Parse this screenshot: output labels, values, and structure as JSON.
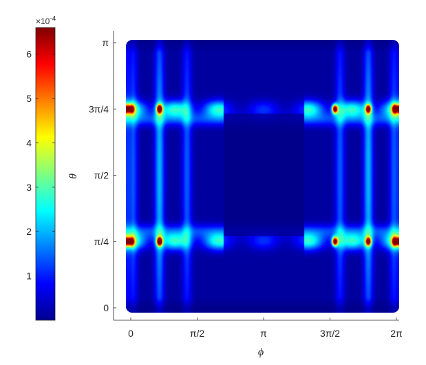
{
  "chart_data": {
    "type": "heatmap",
    "title": "",
    "xlabel": "ϕ",
    "ylabel": "θ",
    "xlim": [
      0,
      6.2832
    ],
    "ylim": [
      0,
      3.1416
    ],
    "x_ticks": [
      {
        "value": 0,
        "label": "0"
      },
      {
        "value": 1.5708,
        "label": "π/2"
      },
      {
        "value": 3.1416,
        "label": "π"
      },
      {
        "value": 4.7124,
        "label": "3π/2"
      },
      {
        "value": 6.2832,
        "label": "2π"
      }
    ],
    "y_ticks": [
      {
        "value": 0,
        "label": "0"
      },
      {
        "value": 0.7854,
        "label": "π/4"
      },
      {
        "value": 1.5708,
        "label": "π/2"
      },
      {
        "value": 2.3562,
        "label": "3π/4"
      },
      {
        "value": 3.1416,
        "label": "π"
      }
    ],
    "colormap": "jet",
    "colorbar": {
      "position": "left",
      "clim": [
        0,
        0.00066
      ],
      "exponent_label": "×10",
      "exponent_value": "-4",
      "ticks": [
        {
          "value": 1,
          "label": "1"
        },
        {
          "value": 2,
          "label": "2"
        },
        {
          "value": 3,
          "label": "3"
        },
        {
          "value": 4,
          "label": "4"
        },
        {
          "value": 5,
          "label": "5"
        },
        {
          "value": 6,
          "label": "6"
        }
      ]
    },
    "field": {
      "background_value": 2e-05,
      "bands": [
        {
          "theta": 0.7854,
          "value": 0.00025
        },
        {
          "theta": 2.3562,
          "value": 0.00025
        }
      ],
      "vertical_stripes": [
        {
          "phi": 0.05,
          "value": 0.00012
        },
        {
          "phi": 0.68,
          "value": 0.00018
        },
        {
          "phi": 1.33,
          "value": 0.00012
        },
        {
          "phi": 4.95,
          "value": 0.00012
        },
        {
          "phi": 5.62,
          "value": 0.00018
        },
        {
          "phi": 6.23,
          "value": 0.00012
        }
      ],
      "hotspots": [
        {
          "phi": 0.02,
          "theta": 0.7854,
          "value": 0.00045
        },
        {
          "phi": 0.02,
          "theta": 2.3562,
          "value": 0.00045
        },
        {
          "phi": 0.68,
          "theta": 0.7854,
          "value": 0.00066
        },
        {
          "phi": 0.68,
          "theta": 2.3562,
          "value": 0.00066
        },
        {
          "phi": 4.83,
          "theta": 0.7854,
          "value": 0.00066
        },
        {
          "phi": 4.83,
          "theta": 2.3562,
          "value": 0.00066
        },
        {
          "phi": 5.62,
          "theta": 0.7854,
          "value": 0.00055
        },
        {
          "phi": 5.62,
          "theta": 2.3562,
          "value": 0.00055
        },
        {
          "phi": 6.25,
          "theta": 0.7854,
          "value": 0.00055
        },
        {
          "phi": 6.25,
          "theta": 2.3562,
          "value": 0.00055
        }
      ],
      "quiet_region": {
        "phi": [
          2.2,
          4.1
        ],
        "theta": [
          0.85,
          2.3
        ]
      }
    }
  }
}
